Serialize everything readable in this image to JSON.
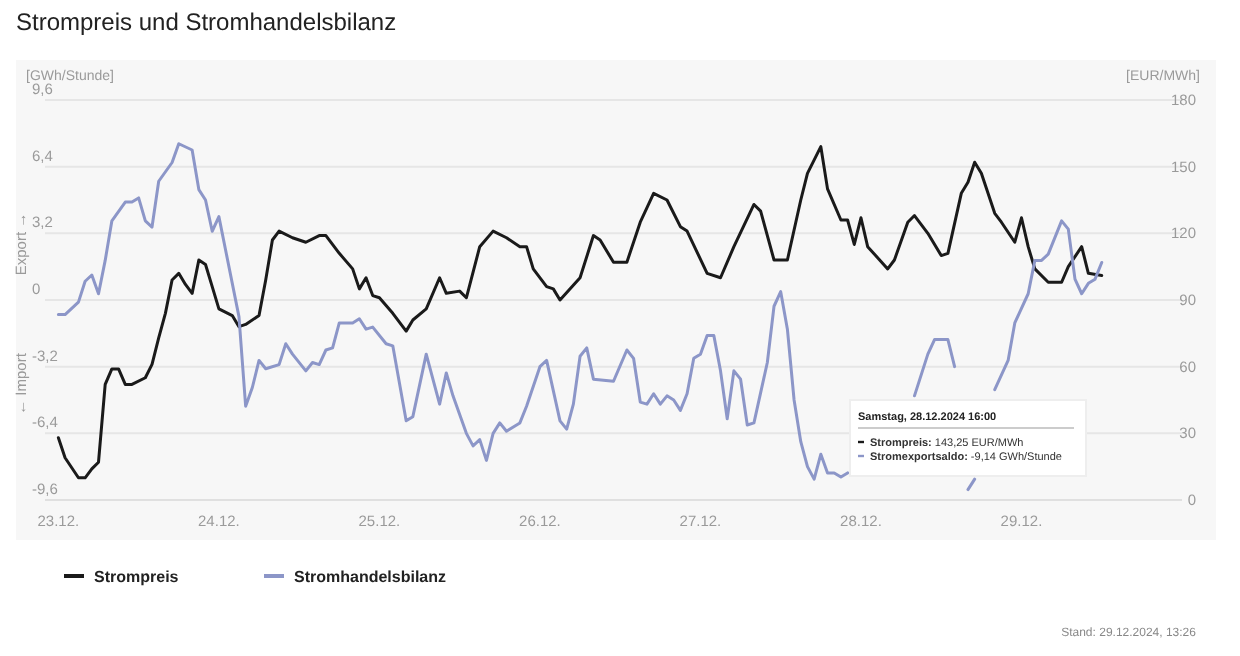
{
  "chart_data": {
    "type": "line",
    "title": "Strompreis und Stromhandelsbilanz",
    "ylabel": "[GWh/Stunde]",
    "y2label": "[EUR/MWh]",
    "xlim": [
      "2024-12-22T22:00",
      "2024-12-30T00:00"
    ],
    "xticks": [
      {
        "value": "2024-12-23",
        "label": "23.12."
      },
      {
        "value": "2024-12-24",
        "label": "24.12."
      },
      {
        "value": "2024-12-25",
        "label": "25.12."
      },
      {
        "value": "2024-12-26",
        "label": "26.12."
      },
      {
        "value": "2024-12-27",
        "label": "27.12."
      },
      {
        "value": "2024-12-28",
        "label": "28.12."
      },
      {
        "value": "2024-12-29",
        "label": "29.12."
      }
    ],
    "ylim": [
      -9.6,
      9.6
    ],
    "yticks": [
      {
        "value": -9.6,
        "label": "-9,6"
      },
      {
        "value": -6.4,
        "label": "-6,4"
      },
      {
        "value": -3.2,
        "label": "-3,2"
      },
      0,
      {
        "value": 3.2,
        "label": "3,2"
      },
      {
        "value": 6.4,
        "label": "6,4"
      },
      {
        "value": 9.6,
        "label": "9,6"
      }
    ],
    "y2lim": [
      0,
      180
    ],
    "y2ticks": [
      0,
      30,
      60,
      90,
      120,
      150,
      180
    ],
    "grid": "y",
    "legend": "bottom",
    "marker": "none",
    "line_style": "solid",
    "annotations": [
      "← Import",
      "Export →",
      "Samstag, 28.12.2024 16:00",
      "Strompreis: 143,25 EUR/MWh",
      "Stromexportsaldo: -9,14 GWh/Stunde",
      "Stand: 29.12.2024, 13:26"
    ],
    "series": [
      {
        "name": "Strompreis",
        "color": "#1a1a1a",
        "axis": "y2",
        "x": [
          "2024-12-23T00:00",
          "2024-12-23T01:00",
          "2024-12-23T03:00",
          "2024-12-23T04:00",
          "2024-12-23T05:00",
          "2024-12-23T06:00",
          "2024-12-23T07:00",
          "2024-12-23T08:00",
          "2024-12-23T09:00",
          "2024-12-23T10:00",
          "2024-12-23T11:00",
          "2024-12-23T13:00",
          "2024-12-23T14:00",
          "2024-12-23T15:00",
          "2024-12-23T16:00",
          "2024-12-23T17:00",
          "2024-12-23T18:00",
          "2024-12-23T19:00",
          "2024-12-23T20:00",
          "2024-12-23T21:00",
          "2024-12-23T22:00",
          "2024-12-23T23:00",
          "2024-12-24T00:00",
          "2024-12-24T02:00",
          "2024-12-24T03:00",
          "2024-12-24T04:00",
          "2024-12-24T06:00",
          "2024-12-24T07:00",
          "2024-12-24T08:00",
          "2024-12-24T09:00",
          "2024-12-24T11:00",
          "2024-12-24T13:00",
          "2024-12-24T15:00",
          "2024-12-24T16:00",
          "2024-12-24T18:00",
          "2024-12-24T20:00",
          "2024-12-24T21:00",
          "2024-12-24T22:00",
          "2024-12-24T23:00",
          "2024-12-25T00:00",
          "2024-12-25T02:00",
          "2024-12-25T04:00",
          "2024-12-25T05:00",
          "2024-12-25T07:00",
          "2024-12-25T09:00",
          "2024-12-25T10:00",
          "2024-12-25T12:00",
          "2024-12-25T13:00",
          "2024-12-25T15:00",
          "2024-12-25T17:00",
          "2024-12-25T19:00",
          "2024-12-25T21:00",
          "2024-12-25T22:00",
          "2024-12-25T23:00",
          "2024-12-26T01:00",
          "2024-12-26T02:00",
          "2024-12-26T03:00",
          "2024-12-26T06:00",
          "2024-12-26T08:00",
          "2024-12-26T09:00",
          "2024-12-26T11:00",
          "2024-12-26T13:00",
          "2024-12-26T15:00",
          "2024-12-26T17:00",
          "2024-12-26T19:00",
          "2024-12-26T21:00",
          "2024-12-26T22:00",
          "2024-12-27T01:00",
          "2024-12-27T03:00",
          "2024-12-27T05:00",
          "2024-12-27T08:00",
          "2024-12-27T09:00",
          "2024-12-27T11:00",
          "2024-12-27T13:00",
          "2024-12-27T15:00",
          "2024-12-27T16:00",
          "2024-12-27T18:00",
          "2024-12-27T19:00",
          "2024-12-27T21:00",
          "2024-12-27T22:00",
          "2024-12-27T23:00",
          "2024-12-28T00:00",
          "2024-12-28T01:00",
          "2024-12-28T04:00",
          "2024-12-28T05:00",
          "2024-12-28T07:00",
          "2024-12-28T08:00",
          "2024-12-28T10:00",
          "2024-12-28T12:00",
          "2024-12-28T13:00",
          "2024-12-28T15:00",
          "2024-12-28T16:00",
          "2024-12-28T17:00",
          "2024-12-28T18:00",
          "2024-12-28T20:00",
          "2024-12-28T21:00",
          "2024-12-28T23:00",
          "2024-12-29T00:00",
          "2024-12-29T01:00",
          "2024-12-29T02:00",
          "2024-12-29T04:00",
          "2024-12-29T06:00",
          "2024-12-29T07:00",
          "2024-12-29T09:00",
          "2024-12-29T10:00",
          "2024-12-29T12:00"
        ],
        "values": [
          28,
          19,
          10,
          10,
          14,
          17,
          52,
          59,
          59,
          52,
          52,
          55,
          61,
          73,
          84,
          99,
          102,
          97,
          93,
          108,
          106,
          96,
          86,
          83,
          78,
          79,
          83,
          99,
          117,
          121,
          118,
          116,
          119,
          119,
          111,
          104,
          95,
          100,
          92,
          91,
          84,
          76,
          81,
          86,
          100,
          93,
          94,
          91,
          114,
          121,
          118,
          114,
          114,
          104,
          96,
          95,
          90,
          100,
          119,
          117,
          107,
          107,
          125,
          138,
          135,
          123,
          121,
          102,
          100,
          114,
          133,
          130,
          108,
          108,
          135,
          147,
          159,
          140,
          126,
          126,
          115,
          127,
          114,
          104,
          108,
          125,
          128,
          120,
          110,
          111,
          138,
          143,
          152,
          147,
          129,
          125,
          116,
          127,
          114,
          104,
          98,
          98,
          105,
          114,
          102,
          101
        ]
      },
      {
        "name": "Stromhandelsbilanz",
        "color": "#8c96c8",
        "axis": "y",
        "x": [
          "2024-12-23T00:00",
          "2024-12-23T01:00",
          "2024-12-23T03:00",
          "2024-12-23T04:00",
          "2024-12-23T05:00",
          "2024-12-23T06:00",
          "2024-12-23T07:00",
          "2024-12-23T08:00",
          "2024-12-23T10:00",
          "2024-12-23T11:00",
          "2024-12-23T12:00",
          "2024-12-23T13:00",
          "2024-12-23T14:00",
          "2024-12-23T15:00",
          "2024-12-23T17:00",
          "2024-12-23T18:00",
          "2024-12-23T20:00",
          "2024-12-23T21:00",
          "2024-12-23T22:00",
          "2024-12-23T23:00",
          "2024-12-24T00:00",
          "2024-12-24T01:00",
          "2024-12-24T03:00",
          "2024-12-24T04:00",
          "2024-12-24T05:00",
          "2024-12-24T06:00",
          "2024-12-24T07:00",
          "2024-12-24T09:00",
          "2024-12-24T10:00",
          "2024-12-24T11:00",
          "2024-12-24T13:00",
          "2024-12-24T14:00",
          "2024-12-24T15:00",
          "2024-12-24T16:00",
          "2024-12-24T17:00",
          "2024-12-24T18:00",
          "2024-12-24T20:00",
          "2024-12-24T21:00",
          "2024-12-24T22:00",
          "2024-12-24T23:00",
          "2024-12-25T01:00",
          "2024-12-25T02:00",
          "2024-12-25T04:00",
          "2024-12-25T05:00",
          "2024-12-25T07:00",
          "2024-12-25T09:00",
          "2024-12-25T10:00",
          "2024-12-25T11:00",
          "2024-12-25T13:00",
          "2024-12-25T14:00",
          "2024-12-25T15:00",
          "2024-12-25T16:00",
          "2024-12-25T17:00",
          "2024-12-25T18:00",
          "2024-12-25T19:00",
          "2024-12-25T21:00",
          "2024-12-25T22:00",
          "2024-12-26T00:00",
          "2024-12-26T01:00",
          "2024-12-26T03:00",
          "2024-12-26T04:00",
          "2024-12-26T05:00",
          "2024-12-26T06:00",
          "2024-12-26T07:00",
          "2024-12-26T08:00",
          "2024-12-26T11:00",
          "2024-12-26T13:00",
          "2024-12-26T14:00",
          "2024-12-26T15:00",
          "2024-12-26T16:00",
          "2024-12-26T17:00",
          "2024-12-26T18:00",
          "2024-12-26T19:00",
          "2024-12-26T20:00",
          "2024-12-26T21:00",
          "2024-12-26T22:00",
          "2024-12-26T23:00",
          "2024-12-27T00:00",
          "2024-12-27T01:00",
          "2024-12-27T02:00",
          "2024-12-27T03:00",
          "2024-12-27T04:00",
          "2024-12-27T05:00",
          "2024-12-27T06:00",
          "2024-12-27T07:00",
          "2024-12-27T08:00",
          "2024-12-27T10:00",
          "2024-12-27T11:00",
          "2024-12-27T12:00",
          "2024-12-27T13:00",
          "2024-12-27T14:00",
          "2024-12-27T15:00",
          "2024-12-27T16:00",
          "2024-12-27T17:00",
          "2024-12-27T18:00",
          "2024-12-27T19:00",
          "2024-12-27T20:00",
          "2024-12-27T21:00",
          "2024-12-27T22:00",
          "2024-12-27T23:00",
          "2024-12-28T00:00",
          "2024-12-28T01:00",
          "2024-12-28T02:00",
          "2024-12-28T03:00",
          "2024-12-28T04:00",
          "2024-12-28T05:00",
          "2024-12-28T07:00",
          "2024-12-28T08:00",
          "2024-12-28T10:00",
          "2024-12-28T11:00",
          "2024-12-28T13:00",
          "2024-12-28T14:00",
          "2024-12-28T15:00",
          "2024-12-28T16:00",
          "2024-12-28T17:00",
          "2024-12-28T18:00",
          "2024-12-28T19:00",
          "2024-12-28T20:00",
          "2024-12-28T22:00",
          "2024-12-28T23:00",
          "2024-12-29T01:00",
          "2024-12-29T02:00",
          "2024-12-29T03:00",
          "2024-12-29T04:00",
          "2024-12-29T06:00",
          "2024-12-29T07:00",
          "2024-12-29T08:00",
          "2024-12-29T09:00",
          "2024-12-29T10:00",
          "2024-12-29T11:00",
          "2024-12-29T12:00"
        ],
        "values": [
          -0.7,
          -0.7,
          -0.1,
          0.9,
          1.2,
          0.3,
          1.9,
          3.8,
          4.7,
          4.7,
          4.9,
          3.8,
          3.5,
          5.7,
          6.6,
          7.5,
          7.2,
          5.3,
          4.8,
          3.3,
          4.0,
          2.4,
          -0.8,
          -5.1,
          -4.2,
          -2.9,
          -3.3,
          -3.1,
          -2.1,
          -2.6,
          -3.4,
          -3.0,
          -3.1,
          -2.4,
          -2.3,
          -1.1,
          -1.1,
          -0.9,
          -1.4,
          -1.3,
          -2.1,
          -2.2,
          -5.8,
          -5.6,
          -2.6,
          -5.0,
          -3.5,
          -4.6,
          -6.4,
          -7.0,
          -6.7,
          -7.7,
          -6.4,
          -5.9,
          -6.3,
          -5.9,
          -5.1,
          -3.2,
          -2.9,
          -5.8,
          -6.2,
          -5.0,
          -2.7,
          -2.3,
          -3.8,
          -3.9,
          -2.4,
          -2.8,
          -4.9,
          -5.0,
          -4.5,
          -5.0,
          -4.6,
          -4.8,
          -5.3,
          -4.5,
          -2.8,
          -2.6,
          -1.7,
          -1.7,
          -3.4,
          -5.7,
          -3.4,
          -3.8,
          -6.0,
          -5.9,
          -3.0,
          -0.3,
          0.4,
          -1.4,
          -4.8,
          -6.8,
          -8.0,
          -8.6,
          -7.4,
          -8.3,
          -8.3,
          -8.5,
          -8.3,
          null,
          null,
          null,
          null,
          null,
          null,
          null,
          null,
          -4.6,
          -2.6,
          -1.9,
          -1.9,
          -3.2,
          null,
          -9.1,
          -8.6,
          null,
          null,
          -4.3,
          -2.9,
          -1.1,
          0.3,
          1.9,
          1.9,
          2.2,
          3.8,
          3.4,
          1.0,
          0.3,
          0.8,
          1.0,
          1.8
        ]
      }
    ]
  }
}
